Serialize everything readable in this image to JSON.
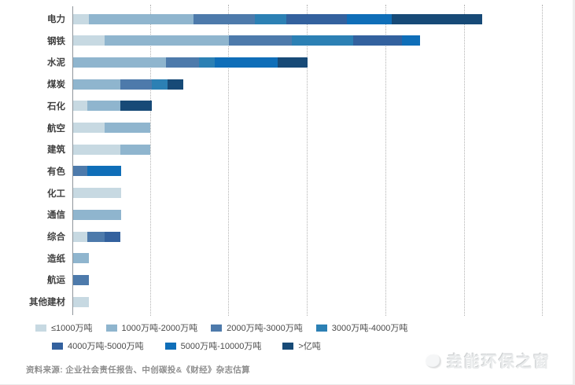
{
  "source": {
    "text": "资料来源: 企业社会责任报告、中创碳投&《财经》杂志估算"
  },
  "watermark": {
    "text": "垚能环保之窗"
  },
  "chart_data": {
    "type": "bar",
    "orientation": "horizontal",
    "stacked": true,
    "title": "",
    "xlabel": "",
    "ylabel": "",
    "grid": "vertical dotted gridlines, 6 unlabeled ticks at equal spacing (no numeric axis labels shown)",
    "legend_position": "bottom",
    "value_unit": "bar lengths in screenshot pixels; gridline spacing ≈ 99 px; axis is unlabeled",
    "legend": [
      {
        "key": "c1",
        "label": "≤1000万吨",
        "color": "#c7d9e2"
      },
      {
        "key": "c2",
        "label": "1000万吨-2000万吨",
        "color": "#8fb5ce"
      },
      {
        "key": "c3",
        "label": "2000万吨-3000万吨",
        "color": "#4d7aab"
      },
      {
        "key": "c4",
        "label": "3000万吨-4000万吨",
        "color": "#2c80b4"
      },
      {
        "key": "c5",
        "label": "4000万吨-5000万吨",
        "color": "#33619e"
      },
      {
        "key": "c6",
        "label": "5000万吨-10000万吨",
        "color": "#0f6eb8"
      },
      {
        "key": "c7",
        "label": ">亿吨",
        "color": "#174a77"
      }
    ],
    "legend_rows": [
      [
        0,
        1,
        2,
        3
      ],
      [
        4,
        5,
        6
      ]
    ],
    "categories": [
      "电力",
      "钢铁",
      "水泥",
      "煤炭",
      "石化",
      "航空",
      "建筑",
      "有色",
      "化工",
      "通信",
      "综合",
      "造纸",
      "航运",
      "其他建材"
    ],
    "rows": [
      {
        "category": "电力",
        "segments": [
          [
            "c1",
            20
          ],
          [
            "c2",
            133
          ],
          [
            "c3",
            78
          ],
          [
            "c4",
            40
          ],
          [
            "c5",
            77
          ],
          [
            "c6",
            57
          ],
          [
            "c7",
            115
          ]
        ]
      },
      {
        "category": "钢铁",
        "segments": [
          [
            "c1",
            40
          ],
          [
            "c2",
            158
          ],
          [
            "c3",
            80
          ],
          [
            "c4",
            78
          ],
          [
            "c5",
            62
          ],
          [
            "c6",
            23
          ]
        ]
      },
      {
        "category": "水泥",
        "segments": [
          [
            "c2",
            118
          ],
          [
            "c3",
            42
          ],
          [
            "c4",
            20
          ],
          [
            "c6",
            80
          ],
          [
            "c7",
            38
          ]
        ]
      },
      {
        "category": "煤炭",
        "segments": [
          [
            "c2",
            60
          ],
          [
            "c3",
            40
          ],
          [
            "c4",
            20
          ],
          [
            "c7",
            20
          ]
        ]
      },
      {
        "category": "石化",
        "segments": [
          [
            "c1",
            18
          ],
          [
            "c2",
            42
          ],
          [
            "c7",
            40
          ]
        ]
      },
      {
        "category": "航空",
        "segments": [
          [
            "c1",
            40
          ],
          [
            "c2",
            58
          ]
        ]
      },
      {
        "category": "建筑",
        "segments": [
          [
            "c1",
            60
          ],
          [
            "c2",
            38
          ]
        ]
      },
      {
        "category": "有色",
        "segments": [
          [
            "c3",
            18
          ],
          [
            "c6",
            43
          ]
        ]
      },
      {
        "category": "化工",
        "segments": [
          [
            "c1",
            61
          ]
        ]
      },
      {
        "category": "通信",
        "segments": [
          [
            "c2",
            61
          ]
        ]
      },
      {
        "category": "综合",
        "segments": [
          [
            "c1",
            18
          ],
          [
            "c3",
            22
          ],
          [
            "c5",
            20
          ]
        ]
      },
      {
        "category": "造纸",
        "segments": [
          [
            "c2",
            20
          ]
        ]
      },
      {
        "category": "航运",
        "segments": [
          [
            "c3",
            20
          ]
        ]
      },
      {
        "category": "其他建材",
        "segments": [
          [
            "c1",
            20
          ]
        ]
      }
    ]
  }
}
